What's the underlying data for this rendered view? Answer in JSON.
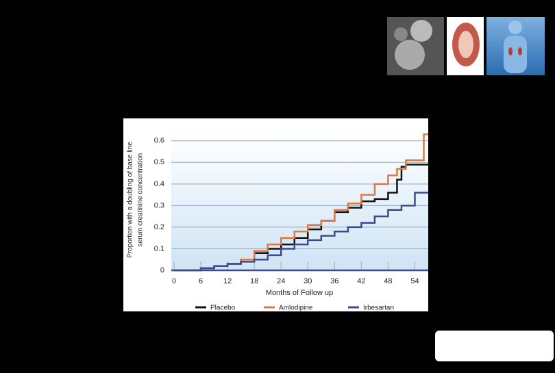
{
  "chart_data": {
    "type": "line",
    "step": true,
    "x_label": "Months of Follow up",
    "y_label": [
      "Proportion with a doubling of base line",
      "serum creatinine concentration"
    ],
    "xlim": [
      0,
      57
    ],
    "xticks": [
      0,
      6,
      12,
      18,
      24,
      30,
      36,
      42,
      48,
      54
    ],
    "ylim": [
      0,
      0.65
    ],
    "yticks": [
      0,
      0.1,
      0.2,
      0.3,
      0.4,
      0.5,
      0.6
    ],
    "grid": true,
    "series": [
      {
        "name": "Placebo",
        "color": "#111111",
        "x": [
          0,
          3,
          6,
          9,
          12,
          15,
          18,
          21,
          24,
          27,
          30,
          33,
          36,
          39,
          42,
          45,
          48,
          50,
          51,
          52,
          54
        ],
        "values": [
          0,
          0,
          0.01,
          0.02,
          0.03,
          0.05,
          0.08,
          0.1,
          0.12,
          0.15,
          0.19,
          0.23,
          0.27,
          0.29,
          0.32,
          0.33,
          0.36,
          0.42,
          0.48,
          0.49,
          0.49
        ]
      },
      {
        "name": "Amlodipine",
        "color": "#e07840",
        "x": [
          0,
          3,
          6,
          9,
          12,
          15,
          18,
          21,
          24,
          27,
          30,
          33,
          36,
          39,
          42,
          45,
          48,
          50,
          52,
          54,
          56
        ],
        "values": [
          0,
          0,
          0.01,
          0.02,
          0.03,
          0.05,
          0.09,
          0.12,
          0.15,
          0.18,
          0.21,
          0.23,
          0.28,
          0.31,
          0.35,
          0.4,
          0.44,
          0.47,
          0.51,
          0.51,
          0.63
        ]
      },
      {
        "name": "Irbesartan",
        "color": "#3a4a90",
        "x": [
          0,
          3,
          6,
          9,
          12,
          15,
          18,
          21,
          24,
          27,
          30,
          33,
          36,
          39,
          42,
          45,
          48,
          51,
          54,
          57
        ],
        "values": [
          0,
          0,
          0.01,
          0.02,
          0.03,
          0.04,
          0.05,
          0.07,
          0.1,
          0.12,
          0.14,
          0.16,
          0.18,
          0.2,
          0.22,
          0.25,
          0.28,
          0.3,
          0.36,
          0.36
        ]
      }
    ]
  }
}
